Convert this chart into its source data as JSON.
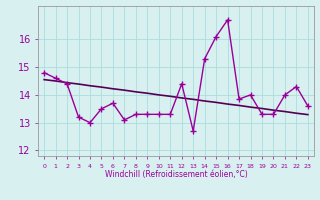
{
  "xlabel": "Windchill (Refroidissement éolien,°C)",
  "x_hours": [
    0,
    1,
    2,
    3,
    4,
    5,
    6,
    7,
    8,
    9,
    10,
    11,
    12,
    13,
    14,
    15,
    16,
    17,
    18,
    19,
    20,
    21,
    22,
    23
  ],
  "windchill": [
    14.8,
    14.6,
    14.4,
    13.2,
    13.0,
    13.5,
    13.7,
    13.1,
    13.3,
    13.3,
    13.3,
    13.3,
    14.4,
    12.7,
    15.3,
    16.1,
    16.7,
    13.85,
    14.0,
    13.3,
    13.3,
    14.0,
    14.3,
    13.6
  ],
  "trend": [
    14.55,
    14.5,
    14.44,
    14.39,
    14.33,
    14.28,
    14.22,
    14.17,
    14.11,
    14.06,
    14.0,
    13.95,
    13.89,
    13.84,
    13.78,
    13.73,
    13.67,
    13.62,
    13.56,
    13.51,
    13.45,
    13.4,
    13.34,
    13.29
  ],
  "bg_color": "#d8f0f0",
  "line_color": "#990099",
  "trend_color": "#550055",
  "grid_color": "#aadddd",
  "ylim": [
    11.8,
    17.2
  ],
  "yticks": [
    12,
    13,
    14,
    15,
    16
  ],
  "xlim": [
    -0.5,
    23.5
  ]
}
